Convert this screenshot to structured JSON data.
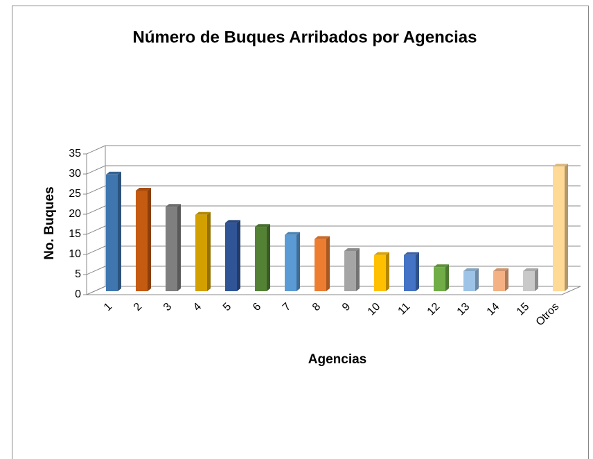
{
  "chart_data": {
    "type": "bar3d",
    "title": "Número de Buques Arribados por Agencias",
    "x_label": "Agencias",
    "y_label": "No. Buques",
    "categories": [
      "1",
      "2",
      "3",
      "4",
      "5",
      "6",
      "7",
      "8",
      "9",
      "10",
      "11",
      "12",
      "13",
      "14",
      "15",
      "Otros"
    ],
    "values": [
      29,
      25,
      21,
      19,
      17,
      16,
      14,
      13,
      10,
      9,
      9,
      6,
      5,
      5,
      5,
      31
    ],
    "colors": [
      "#3f76b0",
      "#c55a11",
      "#7f7f7f",
      "#d4a000",
      "#2f5597",
      "#548235",
      "#5b9bd5",
      "#ed7d31",
      "#a5a5a5",
      "#ffc000",
      "#4472c4",
      "#70ad47",
      "#9dc3e6",
      "#f4b183",
      "#c9c9c9",
      "#ffd996"
    ],
    "ylim": [
      0,
      35
    ],
    "yticks": [
      0,
      5,
      10,
      15,
      20,
      25,
      30,
      35
    ],
    "grid": true
  }
}
